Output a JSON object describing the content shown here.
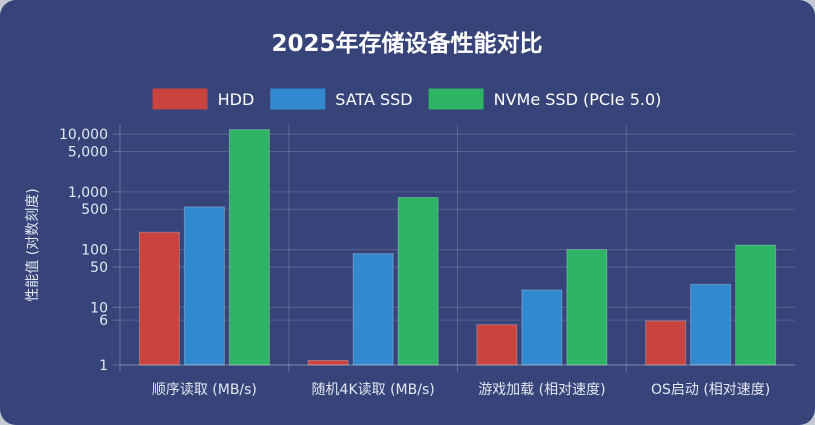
{
  "chart_data": {
    "type": "bar",
    "title": "2025年存储设备性能对比",
    "xlabel": "",
    "ylabel": "性能值 (对数刻度)",
    "y_scale": "log",
    "ylim": [
      1,
      15000
    ],
    "y_ticks": [
      1,
      6,
      10,
      50,
      100,
      500,
      1000,
      5000,
      10000
    ],
    "y_tick_labels": [
      "1",
      "6",
      "10",
      "50",
      "100",
      "500",
      "1,000",
      "5,000",
      "10,000"
    ],
    "categories": [
      "顺序读取 (MB/s)",
      "随机4K读取 (MB/s)",
      "游戏加载 (相对速度)",
      "OS启动 (相对速度)"
    ],
    "series": [
      {
        "name": "HDD",
        "color": "#c9433f",
        "values": [
          200,
          1.2,
          5,
          5.8
        ]
      },
      {
        "name": "SATA SSD",
        "color": "#3389cf",
        "values": [
          550,
          85,
          20,
          25
        ]
      },
      {
        "name": "NVMe SSD (PCIe 5.0)",
        "color": "#2fb466",
        "values": [
          12000,
          800,
          100,
          120
        ]
      }
    ],
    "grid": true,
    "legend_position": "top"
  }
}
